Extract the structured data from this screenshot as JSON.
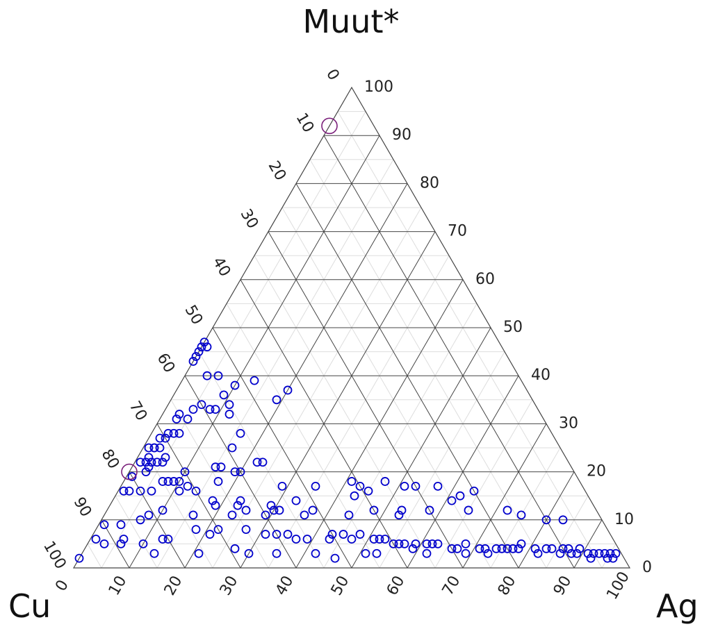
{
  "chart_data": {
    "type": "scatter",
    "subtype": "ternary",
    "axes": {
      "top": "Muut*",
      "left": "Cu",
      "right": "Ag"
    },
    "tick_labels": [
      "0",
      "10",
      "20",
      "30",
      "40",
      "50",
      "60",
      "70",
      "80",
      "90",
      "100"
    ],
    "grid": "on",
    "colors": {
      "frame": "#444444",
      "major_grid": "#444444",
      "minor_grid": "#dddddd",
      "points": "#0000cc",
      "highlight": "#7a1f7a"
    },
    "point_format": "[Cu, Ag, Muut*] in percent",
    "series": [
      {
        "marker": "small-open-circle",
        "color": "#0000cc",
        "points": [
          [
            98,
            0,
            2
          ],
          [
            92,
            3,
            5
          ],
          [
            93,
            1,
            6
          ],
          [
            90,
            1,
            9
          ],
          [
            87,
            4,
            9
          ],
          [
            83,
            7,
            10
          ],
          [
            81,
            8,
            11
          ],
          [
            78,
            10,
            12
          ],
          [
            56,
            4,
            40
          ],
          [
            54,
            6,
            40
          ],
          [
            53,
            1,
            46
          ],
          [
            62,
            5,
            33
          ],
          [
            60,
            6,
            34
          ],
          [
            56,
            12,
            32
          ],
          [
            55,
            11,
            34
          ],
          [
            58,
            9,
            33
          ],
          [
            59,
            8,
            33
          ],
          [
            55,
            9,
            36
          ],
          [
            52,
            10,
            38
          ],
          [
            57,
            0,
            43
          ],
          [
            56,
            0,
            44
          ],
          [
            55,
            0,
            45
          ],
          [
            54,
            0,
            46
          ],
          [
            53,
            0,
            47
          ],
          [
            48,
            13,
            39
          ],
          [
            46,
            19,
            35
          ],
          [
            43,
            20,
            37
          ],
          [
            65,
            3,
            32
          ],
          [
            66,
            3,
            31
          ],
          [
            64,
            5,
            31
          ],
          [
            70,
            3,
            27
          ],
          [
            71,
            2,
            27
          ],
          [
            69,
            3,
            28
          ],
          [
            68,
            4,
            28
          ],
          [
            67,
            5,
            28
          ],
          [
            73,
            2,
            25
          ],
          [
            74,
            1,
            25
          ],
          [
            73,
            2,
            25
          ],
          [
            72,
            3,
            25
          ],
          [
            75,
            2,
            23
          ],
          [
            76,
            2,
            22
          ],
          [
            77,
            1,
            22
          ],
          [
            75,
            3,
            22
          ],
          [
            72,
            5,
            23
          ],
          [
            74,
            4,
            22
          ],
          [
            73,
            5,
            22
          ],
          [
            76,
            3,
            21
          ],
          [
            77,
            3,
            20
          ],
          [
            80,
            1,
            19
          ],
          [
            82,
            2,
            16
          ],
          [
            83,
            1,
            16
          ],
          [
            80,
            4,
            16
          ],
          [
            78,
            6,
            16
          ],
          [
            74,
            8,
            18
          ],
          [
            73,
            9,
            18
          ],
          [
            70,
            10,
            20
          ],
          [
            71,
            12,
            17
          ],
          [
            64,
            15,
            21
          ],
          [
            63,
            16,
            21
          ],
          [
            65,
            17,
            18
          ],
          [
            61,
            19,
            20
          ],
          [
            60,
            20,
            20
          ],
          [
            56,
            22,
            22
          ],
          [
            55,
            23,
            22
          ],
          [
            59,
            16,
            25
          ],
          [
            56,
            16,
            28
          ],
          [
            75,
            7,
            18
          ],
          [
            72,
            10,
            18
          ],
          [
            73,
            11,
            16
          ],
          [
            70,
            14,
            16
          ],
          [
            68,
            18,
            14
          ],
          [
            63,
            23,
            14
          ],
          [
            58,
            29,
            13
          ],
          [
            68,
            19,
            13
          ],
          [
            64,
            23,
            13
          ],
          [
            63,
            25,
            12
          ],
          [
            57,
            31,
            12
          ],
          [
            54,
            29,
            17
          ],
          [
            58,
            30,
            12
          ],
          [
            48,
            35,
            17
          ],
          [
            53,
            33,
            14
          ],
          [
            51,
            37,
            12
          ],
          [
            42,
            43,
            15
          ],
          [
            41,
            41,
            18
          ],
          [
            40,
            43,
            17
          ],
          [
            39,
            45,
            16
          ],
          [
            36,
            53,
            11
          ],
          [
            25,
            61,
            14
          ],
          [
            32,
            51,
            17
          ],
          [
            35,
            47,
            18
          ],
          [
            30,
            53,
            17
          ],
          [
            26,
            57,
            17
          ],
          [
            23,
            62,
            15
          ],
          [
            20,
            64,
            16
          ],
          [
            73,
            16,
            11
          ],
          [
            66,
            23,
            11
          ],
          [
            60,
            29,
            11
          ],
          [
            53,
            36,
            11
          ],
          [
            45,
            44,
            11
          ],
          [
            40,
            48,
            12
          ],
          [
            35,
            53,
            12
          ],
          [
            30,
            58,
            12
          ],
          [
            23,
            65,
            12
          ],
          [
            16,
            72,
            12
          ],
          [
            14,
            75,
            11
          ],
          [
            10,
            80,
            10
          ],
          [
            7,
            83,
            10
          ],
          [
            89,
            6,
            5
          ],
          [
            88,
            6,
            6
          ],
          [
            85,
            10,
            5
          ],
          [
            81,
            13,
            6
          ],
          [
            80,
            14,
            6
          ],
          [
            74,
            18,
            8
          ],
          [
            72,
            21,
            7
          ],
          [
            70,
            22,
            8
          ],
          [
            65,
            27,
            8
          ],
          [
            62,
            31,
            7
          ],
          [
            60,
            33,
            7
          ],
          [
            58,
            35,
            7
          ],
          [
            57,
            37,
            6
          ],
          [
            55,
            39,
            6
          ],
          [
            51,
            43,
            6
          ],
          [
            50,
            43,
            7
          ],
          [
            48,
            45,
            7
          ],
          [
            47,
            47,
            6
          ],
          [
            45,
            48,
            7
          ],
          [
            43,
            51,
            6
          ],
          [
            42,
            52,
            6
          ],
          [
            41,
            53,
            6
          ],
          [
            40,
            55,
            5
          ],
          [
            39,
            56,
            5
          ],
          [
            38,
            57,
            5
          ],
          [
            36,
            59,
            5
          ],
          [
            34,
            61,
            5
          ],
          [
            33,
            62,
            5
          ],
          [
            32,
            63,
            5
          ],
          [
            30,
            66,
            4
          ],
          [
            29,
            67,
            4
          ],
          [
            27,
            68,
            5
          ],
          [
            25,
            71,
            4
          ],
          [
            24,
            72,
            4
          ],
          [
            22,
            74,
            4
          ],
          [
            21,
            75,
            4
          ],
          [
            20,
            76,
            4
          ],
          [
            18,
            78,
            4
          ],
          [
            17,
            78,
            5
          ],
          [
            15,
            81,
            4
          ],
          [
            13,
            83,
            4
          ],
          [
            12,
            84,
            4
          ],
          [
            10,
            86,
            4
          ],
          [
            9,
            87,
            4
          ],
          [
            8,
            89,
            3
          ],
          [
            7,
            89,
            4
          ],
          [
            6,
            91,
            3
          ],
          [
            5,
            92,
            3
          ],
          [
            4,
            93,
            3
          ],
          [
            3,
            94,
            3
          ],
          [
            3,
            95,
            2
          ],
          [
            2,
            96,
            2
          ],
          [
            2,
            95,
            3
          ],
          [
            1,
            96,
            3
          ],
          [
            6,
            92,
            2
          ],
          [
            11,
            86,
            3
          ],
          [
            19,
            77,
            4
          ],
          [
            28,
            69,
            3
          ],
          [
            37,
            59,
            4
          ],
          [
            46,
            51,
            3
          ],
          [
            55,
            42,
            3
          ],
          [
            62,
            35,
            3
          ],
          [
            69,
            27,
            4
          ],
          [
            76,
            21,
            3
          ],
          [
            84,
            13,
            3
          ],
          [
            67,
            30,
            3
          ],
          [
            52,
            46,
            2
          ],
          [
            44,
            53,
            3
          ],
          [
            35,
            62,
            3
          ],
          [
            24,
            73,
            3
          ],
          [
            15,
            82,
            3
          ],
          [
            9,
            88,
            3
          ]
        ]
      },
      {
        "marker": "large-open-circle",
        "color": "#7a1f7a",
        "points": [
          [
            8,
            0,
            92
          ],
          [
            80,
            0,
            20
          ]
        ]
      }
    ]
  }
}
